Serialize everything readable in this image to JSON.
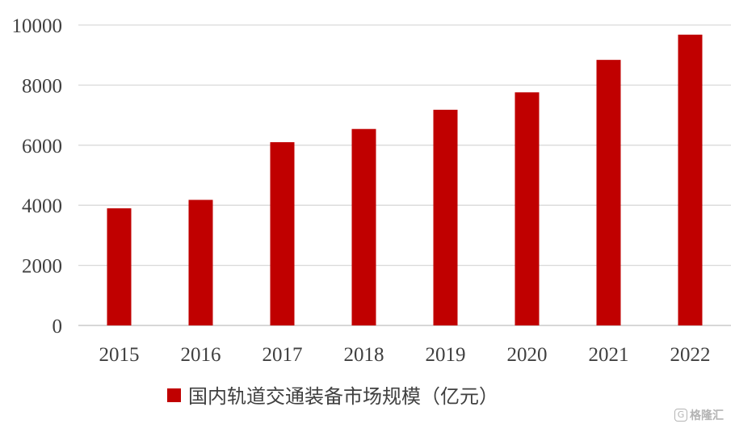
{
  "chart_data": {
    "type": "bar",
    "categories": [
      "2015",
      "2016",
      "2017",
      "2018",
      "2019",
      "2020",
      "2021",
      "2022"
    ],
    "series": [
      {
        "name": "国内轨道交通装备市场规模（亿元）",
        "color": "#c00000",
        "values": [
          3900,
          4180,
          6100,
          6540,
          7180,
          7760,
          8840,
          9680
        ]
      }
    ],
    "yticks": [
      "0",
      "2000",
      "4000",
      "6000",
      "8000",
      "10000"
    ],
    "ylim": [
      0,
      10000
    ],
    "grid": true,
    "legend_position": "bottom"
  },
  "watermark": {
    "icon": "G",
    "text": "格隆汇"
  }
}
